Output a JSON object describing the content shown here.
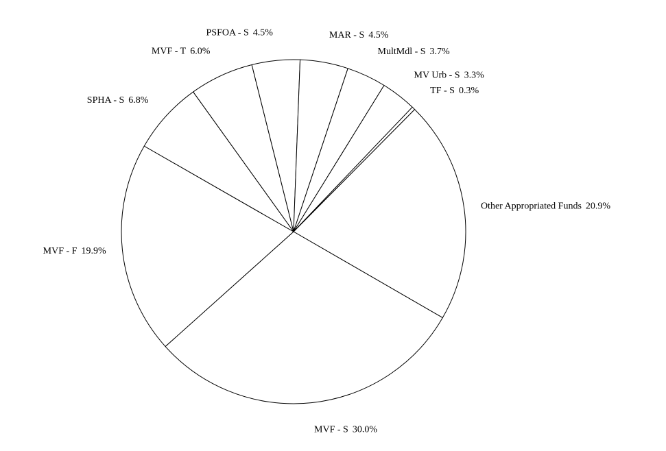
{
  "chart_data": {
    "type": "pie",
    "categories": [
      "Other Appropriated Funds",
      "MVF - S",
      "MVF - F",
      "SPHA - S",
      "MVF - T",
      "PSFOA - S",
      "MAR - S",
      "MultMdl - S",
      "MV Urb - S",
      "TF - S"
    ],
    "values": [
      20.9,
      30.0,
      19.9,
      6.8,
      6.0,
      4.5,
      4.5,
      3.7,
      3.3,
      0.3
    ],
    "value_labels": [
      "20.9%",
      "30.0%",
      "19.9%",
      "6.8%",
      "6.0%",
      "4.5%",
      "4.5%",
      "3.7%",
      "3.3%",
      "0.3%"
    ],
    "color": "#ffffff"
  }
}
